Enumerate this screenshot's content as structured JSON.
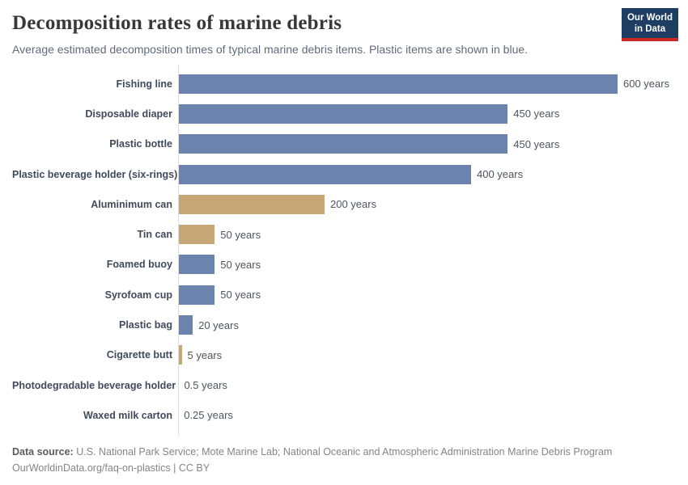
{
  "header": {
    "title": "Decomposition rates of marine debris",
    "subtitle": "Average estimated decomposition times of typical marine debris items. Plastic items are shown in blue.",
    "logo": {
      "line1": "Our World",
      "line2": "in Data"
    }
  },
  "colors": {
    "plastic_bar": "#6c84ad",
    "other_bar": "#c8a776",
    "logo_bg": "#1d3d63",
    "logo_red": "#cf2721"
  },
  "chart_data": {
    "type": "bar",
    "orientation": "horizontal",
    "title": "Decomposition rates of marine debris",
    "unit": "years",
    "xlim": [
      0,
      600
    ],
    "grid": false,
    "legend": "none",
    "items": [
      {
        "label": "Fishing line",
        "value": 600,
        "value_label": "600 years",
        "plastic": true
      },
      {
        "label": "Disposable diaper",
        "value": 450,
        "value_label": "450 years",
        "plastic": true
      },
      {
        "label": "Plastic bottle",
        "value": 450,
        "value_label": "450 years",
        "plastic": true
      },
      {
        "label": "Plastic beverage holder (six-rings)",
        "value": 400,
        "value_label": "400 years",
        "plastic": true
      },
      {
        "label": "Aluminimum can",
        "value": 200,
        "value_label": "200 years",
        "plastic": false
      },
      {
        "label": "Tin can",
        "value": 50,
        "value_label": "50 years",
        "plastic": false
      },
      {
        "label": "Foamed buoy",
        "value": 50,
        "value_label": "50 years",
        "plastic": true
      },
      {
        "label": "Syrofoam cup",
        "value": 50,
        "value_label": "50 years",
        "plastic": true
      },
      {
        "label": "Plastic bag",
        "value": 20,
        "value_label": "20 years",
        "plastic": true
      },
      {
        "label": "Cigarette butt",
        "value": 5,
        "value_label": "5 years",
        "plastic": false
      },
      {
        "label": "Photodegradable beverage holder",
        "value": 0.5,
        "value_label": "0.5 years",
        "plastic": true
      },
      {
        "label": "Waxed milk carton",
        "value": 0.25,
        "value_label": "0.25 years",
        "plastic": false
      }
    ]
  },
  "footer": {
    "source_label": "Data source:",
    "source_text": " U.S. National Park Service; Mote Marine Lab; National Oceanic and Atmospheric Administration Marine Debris Program",
    "link_line": "OurWorldinData.org/faq-on-plastics | CC BY"
  }
}
